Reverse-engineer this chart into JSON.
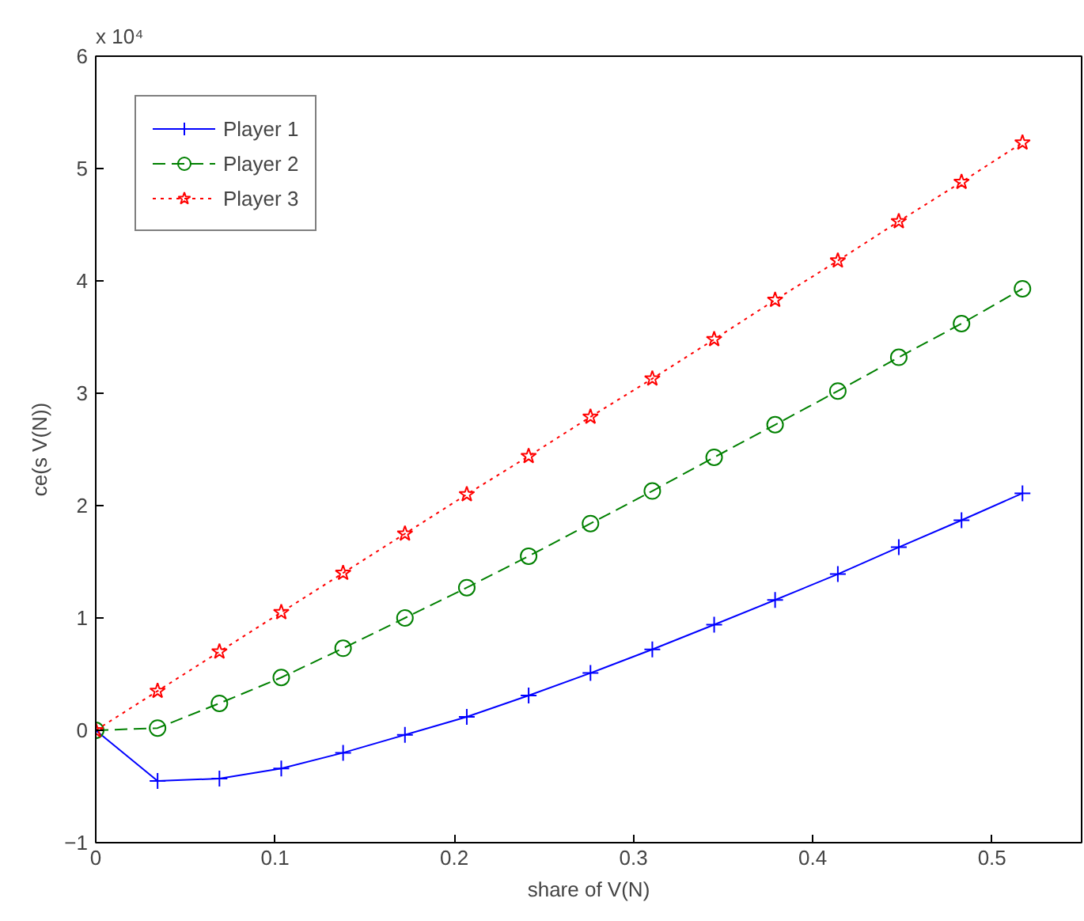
{
  "chart_data": {
    "type": "line",
    "xlabel": "share of V(N)",
    "ylabel": "ce(s V(N))",
    "annotations": [
      "x 10⁴"
    ],
    "x": [
      0,
      0.0345,
      0.069,
      0.1035,
      0.138,
      0.1725,
      0.207,
      0.2415,
      0.276,
      0.3105,
      0.345,
      0.379,
      0.414,
      0.448,
      0.483,
      0.517
    ],
    "series": [
      {
        "name": "Player 1",
        "color": "#0000ff",
        "marker": "cross",
        "line_style": "solid",
        "values": [
          0,
          -0.45,
          -0.43,
          -0.34,
          -0.2,
          -0.04,
          0.12,
          0.31,
          0.51,
          0.72,
          0.94,
          1.16,
          1.39,
          1.63,
          1.87,
          2.11
        ]
      },
      {
        "name": "Player 2",
        "color": "#008000",
        "marker": "circle",
        "line_style": "dashed",
        "values": [
          0,
          0.02,
          0.24,
          0.47,
          0.73,
          1.0,
          1.27,
          1.55,
          1.84,
          2.13,
          2.43,
          2.72,
          3.02,
          3.32,
          3.62,
          3.93
        ]
      },
      {
        "name": "Player 3",
        "color": "#ff0000",
        "marker": "star",
        "line_style": "dotted",
        "values": [
          0,
          0.35,
          0.7,
          1.05,
          1.4,
          1.75,
          2.1,
          2.44,
          2.79,
          3.13,
          3.48,
          3.83,
          4.18,
          4.53,
          4.88,
          5.23
        ]
      }
    ],
    "xlim": [
      0,
      0.55
    ],
    "ylim": [
      -1,
      6
    ],
    "xticks": [
      0,
      0.1,
      0.2,
      0.3,
      0.4,
      0.5
    ],
    "yticks": [
      -1,
      0,
      1,
      2,
      3,
      4,
      5,
      6
    ],
    "grid": false,
    "legend": "top left"
  }
}
